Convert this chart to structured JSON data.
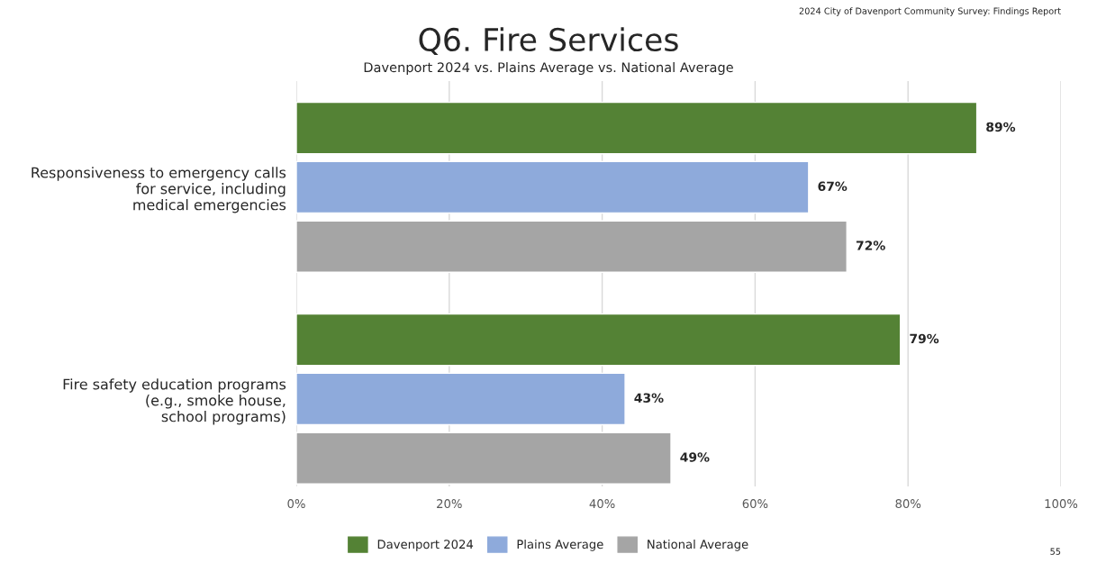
{
  "chart_data": {
    "type": "bar",
    "orientation": "horizontal",
    "title": "Q6. Fire Services",
    "subtitle": "Davenport 2024 vs. Plains Average vs. National Average",
    "categories": [
      "Responsiveness to emergency calls\nfor service, including\nmedical emergencies",
      "Fire safety education programs\n(e.g., smoke house,\nschool programs)"
    ],
    "series": [
      {
        "name": "Davenport 2024",
        "color": "#548235",
        "values": [
          89,
          79
        ]
      },
      {
        "name": "Plains Average",
        "color": "#8eaadb",
        "values": [
          67,
          43
        ]
      },
      {
        "name": "National Average",
        "color": "#a5a5a5",
        "values": [
          72,
          49
        ]
      }
    ],
    "xlim": [
      0,
      100
    ],
    "xticks": [
      {
        "value": 0,
        "label": "0%"
      },
      {
        "value": 20,
        "label": "20%"
      },
      {
        "value": 40,
        "label": "40%"
      },
      {
        "value": 60,
        "label": "60%"
      },
      {
        "value": 80,
        "label": "80%"
      },
      {
        "value": 100,
        "label": "100%"
      }
    ],
    "value_labels": [
      "89%",
      "79%",
      "67%",
      "43%",
      "72%",
      "49%"
    ],
    "grid": "x",
    "legend": "bottom",
    "annotations": [
      "2024 City of Davenport Community Survey: Findings Report",
      "55"
    ]
  }
}
